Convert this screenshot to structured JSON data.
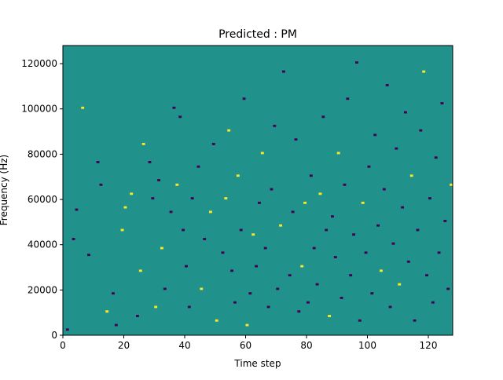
{
  "chart_data": {
    "type": "heatmap",
    "title": "Predicted : PM",
    "xlabel": "Time step",
    "ylabel": "Frequency (Hz)",
    "xlim": [
      0,
      128
    ],
    "ylim": [
      0,
      128000
    ],
    "x_ticks": [
      0,
      20,
      40,
      60,
      80,
      100,
      120
    ],
    "x_tick_labels": [
      "0",
      "20",
      "40",
      "60",
      "80",
      "100",
      "120"
    ],
    "y_ticks": [
      0,
      20000,
      40000,
      60000,
      80000,
      100000,
      120000
    ],
    "y_tick_labels": [
      "0",
      "20000",
      "40000",
      "60000",
      "80000",
      "100000",
      "120000"
    ],
    "colormap": "viridis",
    "value_levels": {
      "low": -1,
      "background": 0,
      "high": 1
    },
    "colors": {
      "low": "#440154",
      "background": "#21918c",
      "high": "#fde725"
    },
    "grid": false,
    "legend": "none",
    "n_time_steps": 128,
    "n_frequency_bins": 128,
    "frequency_bin_hz": 1000,
    "note": "cells list [time_step, frequency_start_hz, value]",
    "cells": [
      [
        1,
        2000,
        -1
      ],
      [
        3,
        42000,
        -1
      ],
      [
        4,
        55000,
        -1
      ],
      [
        6,
        100000,
        1
      ],
      [
        8,
        35000,
        -1
      ],
      [
        11,
        76000,
        -1
      ],
      [
        12,
        66000,
        -1
      ],
      [
        14,
        10000,
        1
      ],
      [
        16,
        18000,
        -1
      ],
      [
        17,
        4000,
        -1
      ],
      [
        19,
        46000,
        1
      ],
      [
        20,
        56000,
        1
      ],
      [
        22,
        62000,
        1
      ],
      [
        24,
        8000,
        -1
      ],
      [
        25,
        28000,
        1
      ],
      [
        26,
        84000,
        1
      ],
      [
        28,
        76000,
        -1
      ],
      [
        29,
        60000,
        -1
      ],
      [
        30,
        12000,
        1
      ],
      [
        31,
        68000,
        -1
      ],
      [
        32,
        38000,
        1
      ],
      [
        33,
        20000,
        -1
      ],
      [
        35,
        54000,
        -1
      ],
      [
        36,
        100000,
        -1
      ],
      [
        37,
        66000,
        1
      ],
      [
        38,
        96000,
        -1
      ],
      [
        39,
        46000,
        -1
      ],
      [
        40,
        30000,
        -1
      ],
      [
        41,
        12000,
        -1
      ],
      [
        42,
        60000,
        -1
      ],
      [
        44,
        74000,
        -1
      ],
      [
        45,
        20000,
        1
      ],
      [
        46,
        42000,
        -1
      ],
      [
        48,
        54000,
        1
      ],
      [
        49,
        84000,
        -1
      ],
      [
        50,
        6000,
        1
      ],
      [
        52,
        36000,
        -1
      ],
      [
        53,
        60000,
        1
      ],
      [
        54,
        90000,
        1
      ],
      [
        55,
        28000,
        -1
      ],
      [
        56,
        14000,
        -1
      ],
      [
        57,
        70000,
        1
      ],
      [
        58,
        46000,
        -1
      ],
      [
        59,
        104000,
        -1
      ],
      [
        60,
        4000,
        1
      ],
      [
        61,
        18000,
        -1
      ],
      [
        62,
        44000,
        1
      ],
      [
        63,
        30000,
        -1
      ],
      [
        64,
        58000,
        -1
      ],
      [
        65,
        80000,
        1
      ],
      [
        66,
        38000,
        -1
      ],
      [
        67,
        12000,
        -1
      ],
      [
        68,
        64000,
        -1
      ],
      [
        69,
        92000,
        -1
      ],
      [
        70,
        20000,
        -1
      ],
      [
        71,
        48000,
        1
      ],
      [
        72,
        116000,
        -1
      ],
      [
        74,
        26000,
        -1
      ],
      [
        75,
        54000,
        -1
      ],
      [
        76,
        86000,
        -1
      ],
      [
        77,
        10000,
        -1
      ],
      [
        78,
        30000,
        1
      ],
      [
        79,
        58000,
        1
      ],
      [
        80,
        14000,
        -1
      ],
      [
        81,
        70000,
        -1
      ],
      [
        82,
        38000,
        -1
      ],
      [
        83,
        22000,
        -1
      ],
      [
        84,
        62000,
        1
      ],
      [
        85,
        96000,
        -1
      ],
      [
        86,
        46000,
        -1
      ],
      [
        87,
        8000,
        1
      ],
      [
        88,
        52000,
        -1
      ],
      [
        89,
        34000,
        -1
      ],
      [
        90,
        80000,
        1
      ],
      [
        91,
        16000,
        -1
      ],
      [
        92,
        66000,
        -1
      ],
      [
        93,
        104000,
        -1
      ],
      [
        94,
        26000,
        -1
      ],
      [
        95,
        44000,
        -1
      ],
      [
        96,
        120000,
        -1
      ],
      [
        97,
        6000,
        -1
      ],
      [
        98,
        58000,
        1
      ],
      [
        99,
        36000,
        -1
      ],
      [
        100,
        74000,
        -1
      ],
      [
        101,
        18000,
        -1
      ],
      [
        102,
        88000,
        -1
      ],
      [
        103,
        48000,
        -1
      ],
      [
        104,
        28000,
        1
      ],
      [
        105,
        64000,
        -1
      ],
      [
        106,
        110000,
        -1
      ],
      [
        107,
        12000,
        -1
      ],
      [
        108,
        40000,
        -1
      ],
      [
        109,
        82000,
        -1
      ],
      [
        110,
        22000,
        1
      ],
      [
        111,
        56000,
        -1
      ],
      [
        112,
        98000,
        -1
      ],
      [
        113,
        32000,
        -1
      ],
      [
        114,
        70000,
        1
      ],
      [
        115,
        6000,
        -1
      ],
      [
        116,
        46000,
        -1
      ],
      [
        117,
        90000,
        -1
      ],
      [
        118,
        116000,
        1
      ],
      [
        119,
        26000,
        -1
      ],
      [
        120,
        60000,
        -1
      ],
      [
        121,
        14000,
        -1
      ],
      [
        122,
        78000,
        -1
      ],
      [
        123,
        36000,
        -1
      ],
      [
        124,
        102000,
        -1
      ],
      [
        125,
        50000,
        -1
      ],
      [
        126,
        20000,
        -1
      ],
      [
        127,
        66000,
        1
      ]
    ]
  }
}
